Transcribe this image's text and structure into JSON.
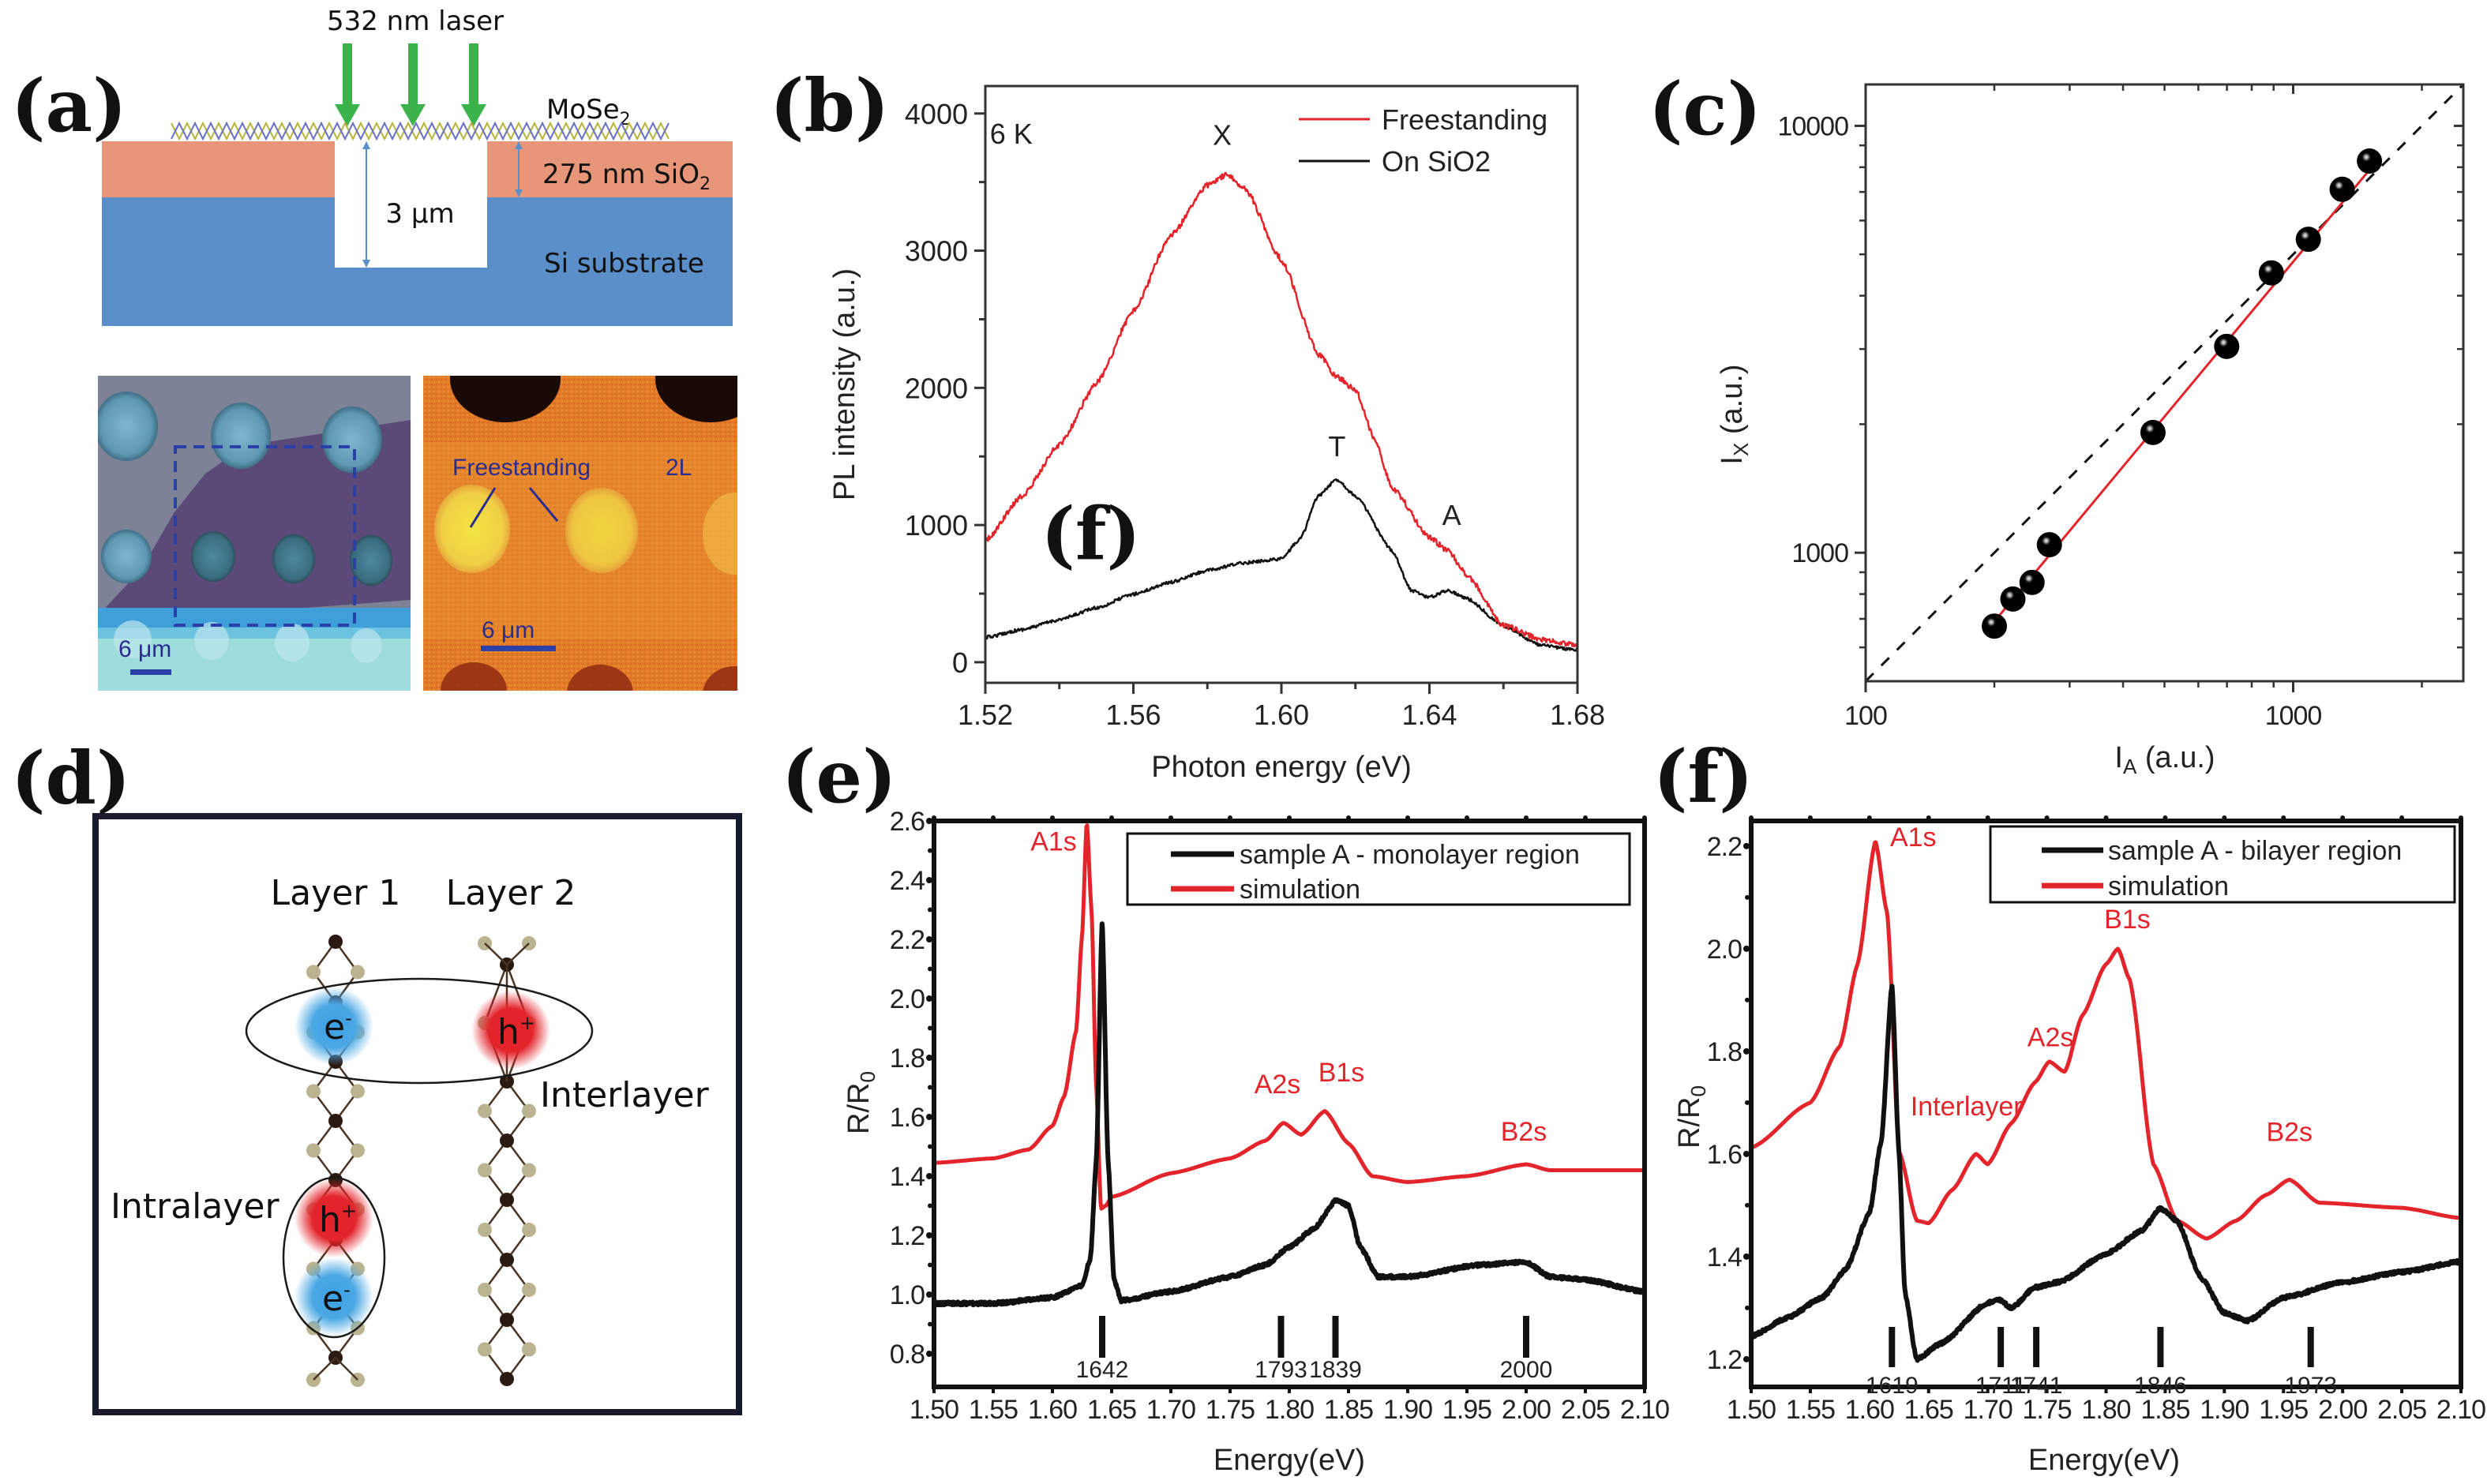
{
  "figure": {
    "panel_labels": {
      "a": "(a)",
      "b": "(b)",
      "c": "(c)",
      "d": "(d)",
      "e": "(e)",
      "f": "(f)"
    },
    "colors": {
      "red": "#e3242b",
      "black": "#111111",
      "sio2": "#e8967a",
      "si": "#5b8fc9",
      "laser": "#3cb34a",
      "accent_blue": "#2a2d8f"
    }
  },
  "panel_a": {
    "laser_label": "532 nm laser",
    "mose2_label": "MoSe",
    "mose2_sub": "2",
    "sio2_label": "275 nm SiO",
    "sio2_sub": "2",
    "hole_depth_label": "3 μm",
    "substrate_label": "Si substrate",
    "optical_image": {
      "scale_bar_label": "6 μm"
    },
    "pl_map_image": {
      "label_freestanding": "Freestanding",
      "label_2l": "2L",
      "scale_bar_label": "6 μm"
    }
  },
  "panel_d": {
    "layer1_label": "Layer 1",
    "layer2_label": "Layer 2",
    "interlayer_label": "Interlayer",
    "intralayer_label": "Intralayer",
    "electron_label": "e",
    "electron_sup": "-",
    "hole_label": "h",
    "hole_sup": "+"
  },
  "chart_data": [
    {
      "id": "b",
      "type": "line",
      "title": "",
      "xlabel": "Photon energy (eV)",
      "ylabel": "PL intensity (a.u.)",
      "xlim": [
        1.52,
        1.68
      ],
      "ylim": [
        -150,
        4200
      ],
      "xticks": [
        1.52,
        1.56,
        1.6,
        1.64,
        1.68
      ],
      "xtick_labels": [
        "1.52",
        "1.56",
        "1.60",
        "1.64",
        "1.68"
      ],
      "xminor": [
        1.54,
        1.58,
        1.62,
        1.66
      ],
      "yticks": [
        0,
        1000,
        2000,
        3000,
        4000
      ],
      "ytick_labels": [
        "0",
        "1000",
        "2000",
        "3000",
        "4000"
      ],
      "yminor": [
        500,
        1500,
        2500,
        3500
      ],
      "grid": false,
      "legend_position": "top-right",
      "annotations": [
        {
          "text": "6 K",
          "x": 1.527,
          "y": 3780
        },
        {
          "text": "X",
          "x": 1.584,
          "y": 3770
        },
        {
          "text": "T",
          "x": 1.615,
          "y": 1500
        },
        {
          "text": "A",
          "x": 1.646,
          "y": 1000
        },
        {
          "text": "(f)",
          "x": 1.535,
          "y": 750,
          "style": "serif-bold"
        }
      ],
      "series": [
        {
          "name": "Freestanding",
          "color": "#e3242b",
          "x": [
            1.52,
            1.53,
            1.54,
            1.55,
            1.56,
            1.57,
            1.58,
            1.585,
            1.59,
            1.6,
            1.61,
            1.615,
            1.62,
            1.625,
            1.63,
            1.64,
            1.645,
            1.65,
            1.66,
            1.67,
            1.68
          ],
          "y": [
            883,
            1213,
            1586,
            2030,
            2560,
            3105,
            3478,
            3550,
            3464,
            2933,
            2245,
            2080,
            1987,
            1640,
            1270,
            912,
            811,
            640,
            267,
            166,
            123
          ]
        },
        {
          "name": "On SiO2",
          "color": "#111111",
          "x": [
            1.52,
            1.53,
            1.54,
            1.55,
            1.56,
            1.57,
            1.58,
            1.59,
            1.6,
            1.605,
            1.61,
            1.615,
            1.62,
            1.63,
            1.635,
            1.64,
            1.645,
            1.65,
            1.66,
            1.67,
            1.68
          ],
          "y": [
            181,
            238,
            310,
            396,
            496,
            582,
            668,
            725,
            754,
            897,
            1213,
            1333,
            1213,
            811,
            525,
            473,
            525,
            467,
            267,
            123,
            89
          ]
        }
      ]
    },
    {
      "id": "c",
      "type": "scatter",
      "title": "",
      "xlabel": "I",
      "xlabel_sub": "A",
      "xlabel_unit": " (a.u.)",
      "ylabel": "I",
      "ylabel_sub": "X",
      "ylabel_unit": " (a.u.)",
      "xscale": "log",
      "yscale": "log",
      "xlim": [
        100,
        2500
      ],
      "ylim": [
        500,
        12500
      ],
      "xticks": [
        100,
        1000
      ],
      "xtick_labels": [
        "100",
        "1000"
      ],
      "yticks": [
        1000,
        10000
      ],
      "ytick_labels": [
        "1000",
        "10000"
      ],
      "grid": false,
      "points": {
        "x": [
          200,
          221,
          245,
          269,
          470,
          699,
          889,
          1085,
          1302,
          1508
        ],
        "y": [
          673,
          779,
          852,
          1044,
          1913,
          3043,
          4524,
          5423,
          7102,
          8270
        ]
      },
      "fit_line": {
        "color": "#e3242b",
        "x": [
          200,
          1550
        ],
        "y": [
          690,
          8150
        ]
      },
      "reference_line": {
        "style": "dashed",
        "color": "#111111",
        "x": [
          100,
          2500
        ],
        "y": [
          500,
          12500
        ]
      }
    },
    {
      "id": "e",
      "type": "line",
      "title": "",
      "xlabel": "Energy(eV)",
      "ylabel": "R/R",
      "ylabel_sub": "0",
      "xlim": [
        1.5,
        2.1
      ],
      "ylim": [
        0.688,
        2.6
      ],
      "xticks": [
        1.5,
        1.55,
        1.6,
        1.65,
        1.7,
        1.75,
        1.8,
        1.85,
        1.9,
        1.95,
        2.0,
        2.05,
        2.1
      ],
      "xtick_labels": [
        "1.50",
        "1.55",
        "1.60",
        "1.65",
        "1.70",
        "1.75",
        "1.80",
        "1.85",
        "1.90",
        "1.95",
        "2.00",
        "2.05",
        "2.10"
      ],
      "yticks": [
        0.8,
        1.0,
        1.2,
        1.4,
        1.6,
        1.8,
        2.0,
        2.2,
        2.4,
        2.6
      ],
      "ytick_labels": [
        "0.8",
        "1.0",
        "1.2",
        "1.4",
        "1.6",
        "1.8",
        "2.0",
        "2.2",
        "2.4",
        "2.6"
      ],
      "grid": false,
      "legend_position": "top-right",
      "annotations": [
        {
          "text": "A1s",
          "x": 1.601,
          "y": 2.5
        },
        {
          "text": "A2s",
          "x": 1.79,
          "y": 1.68
        },
        {
          "text": "B1s",
          "x": 1.844,
          "y": 1.72
        },
        {
          "text": "B2s",
          "x": 1.998,
          "y": 1.52
        }
      ],
      "markers": {
        "values_meV": [
          1642,
          1793,
          1839,
          2000
        ],
        "labels": [
          "1642",
          "1793",
          "1839",
          "2000"
        ]
      },
      "series": [
        {
          "name": "sample A - monolayer region",
          "color": "#111111",
          "x": [
            1.5,
            1.55,
            1.6,
            1.625,
            1.632,
            1.637,
            1.642,
            1.647,
            1.652,
            1.658,
            1.7,
            1.75,
            1.78,
            1.8,
            1.82,
            1.84,
            1.85,
            1.86,
            1.875,
            1.9,
            1.96,
            2.0,
            2.02,
            2.05,
            2.1
          ],
          "y": [
            0.97,
            0.97,
            0.99,
            1.03,
            1.12,
            1.45,
            2.26,
            1.45,
            1.05,
            0.98,
            1.01,
            1.06,
            1.1,
            1.16,
            1.22,
            1.32,
            1.3,
            1.16,
            1.06,
            1.06,
            1.1,
            1.11,
            1.06,
            1.05,
            1.01
          ]
        },
        {
          "name": "simulation",
          "color": "#e3242b",
          "x": [
            1.5,
            1.55,
            1.58,
            1.6,
            1.61,
            1.62,
            1.625,
            1.629,
            1.633,
            1.637,
            1.641,
            1.645,
            1.65,
            1.7,
            1.75,
            1.78,
            1.795,
            1.81,
            1.83,
            1.85,
            1.87,
            1.9,
            1.95,
            2.0,
            2.02,
            2.1
          ],
          "y": [
            1.445,
            1.46,
            1.49,
            1.57,
            1.67,
            1.89,
            2.21,
            2.6,
            2.3,
            1.7,
            1.29,
            1.3,
            1.33,
            1.41,
            1.46,
            1.52,
            1.58,
            1.54,
            1.62,
            1.51,
            1.4,
            1.38,
            1.4,
            1.44,
            1.42,
            1.42
          ]
        }
      ]
    },
    {
      "id": "f",
      "type": "line",
      "title": "",
      "xlabel": "Energy(eV)",
      "ylabel": "R/R",
      "ylabel_sub": "0",
      "xlim": [
        1.5,
        2.1
      ],
      "ylim": [
        1.146,
        2.249
      ],
      "xticks": [
        1.5,
        1.55,
        1.6,
        1.65,
        1.7,
        1.75,
        1.8,
        1.85,
        1.9,
        1.95,
        2.0,
        2.05,
        2.1
      ],
      "xtick_labels": [
        "1.50",
        "1.55",
        "1.60",
        "1.65",
        "1.70",
        "1.75",
        "1.80",
        "1.85",
        "1.90",
        "1.95",
        "2.00",
        "2.05",
        "2.10"
      ],
      "yticks": [
        1.2,
        1.4,
        1.6,
        1.8,
        2.0,
        2.2
      ],
      "ytick_labels": [
        "1.2",
        "1.4",
        "1.6",
        "1.8",
        "2.0",
        "2.2"
      ],
      "grid": false,
      "legend_position": "top-right",
      "annotations": [
        {
          "text": "A1s",
          "x": 1.637,
          "y": 2.2
        },
        {
          "text": "Interlayer",
          "x": 1.682,
          "y": 1.675
        },
        {
          "text": "A2s",
          "x": 1.753,
          "y": 1.81
        },
        {
          "text": "B1s",
          "x": 1.818,
          "y": 2.04
        },
        {
          "text": "B2s",
          "x": 1.955,
          "y": 1.625
        }
      ],
      "markers": {
        "values_meV": [
          1619,
          1711,
          1741,
          1846,
          1973
        ],
        "labels": [
          "1619",
          "1711",
          "1741",
          "1846",
          "1973"
        ]
      },
      "series": [
        {
          "name": "sample A - bilayer region",
          "color": "#111111",
          "x": [
            1.5,
            1.53,
            1.56,
            1.58,
            1.6,
            1.61,
            1.619,
            1.625,
            1.63,
            1.64,
            1.66,
            1.7,
            1.71,
            1.72,
            1.74,
            1.76,
            1.8,
            1.83,
            1.846,
            1.86,
            1.88,
            1.9,
            1.92,
            1.95,
            2.0,
            2.05,
            2.1
          ],
          "y": [
            1.245,
            1.28,
            1.32,
            1.375,
            1.485,
            1.625,
            1.93,
            1.6,
            1.33,
            1.2,
            1.23,
            1.31,
            1.315,
            1.3,
            1.34,
            1.35,
            1.405,
            1.45,
            1.495,
            1.47,
            1.36,
            1.29,
            1.275,
            1.32,
            1.35,
            1.37,
            1.39
          ]
        },
        {
          "name": "simulation",
          "color": "#e3242b",
          "x": [
            1.5,
            1.55,
            1.575,
            1.59,
            1.605,
            1.615,
            1.625,
            1.64,
            1.65,
            1.67,
            1.69,
            1.7,
            1.72,
            1.74,
            1.752,
            1.765,
            1.78,
            1.8,
            1.81,
            1.82,
            1.84,
            1.86,
            1.885,
            1.91,
            1.935,
            1.955,
            1.98,
            2.05,
            2.1
          ],
          "y": [
            1.612,
            1.7,
            1.81,
            1.97,
            2.21,
            2.07,
            1.605,
            1.47,
            1.465,
            1.53,
            1.6,
            1.58,
            1.66,
            1.74,
            1.78,
            1.76,
            1.87,
            1.97,
            2.0,
            1.94,
            1.58,
            1.47,
            1.435,
            1.47,
            1.52,
            1.55,
            1.505,
            1.495,
            1.475
          ]
        }
      ]
    }
  ]
}
